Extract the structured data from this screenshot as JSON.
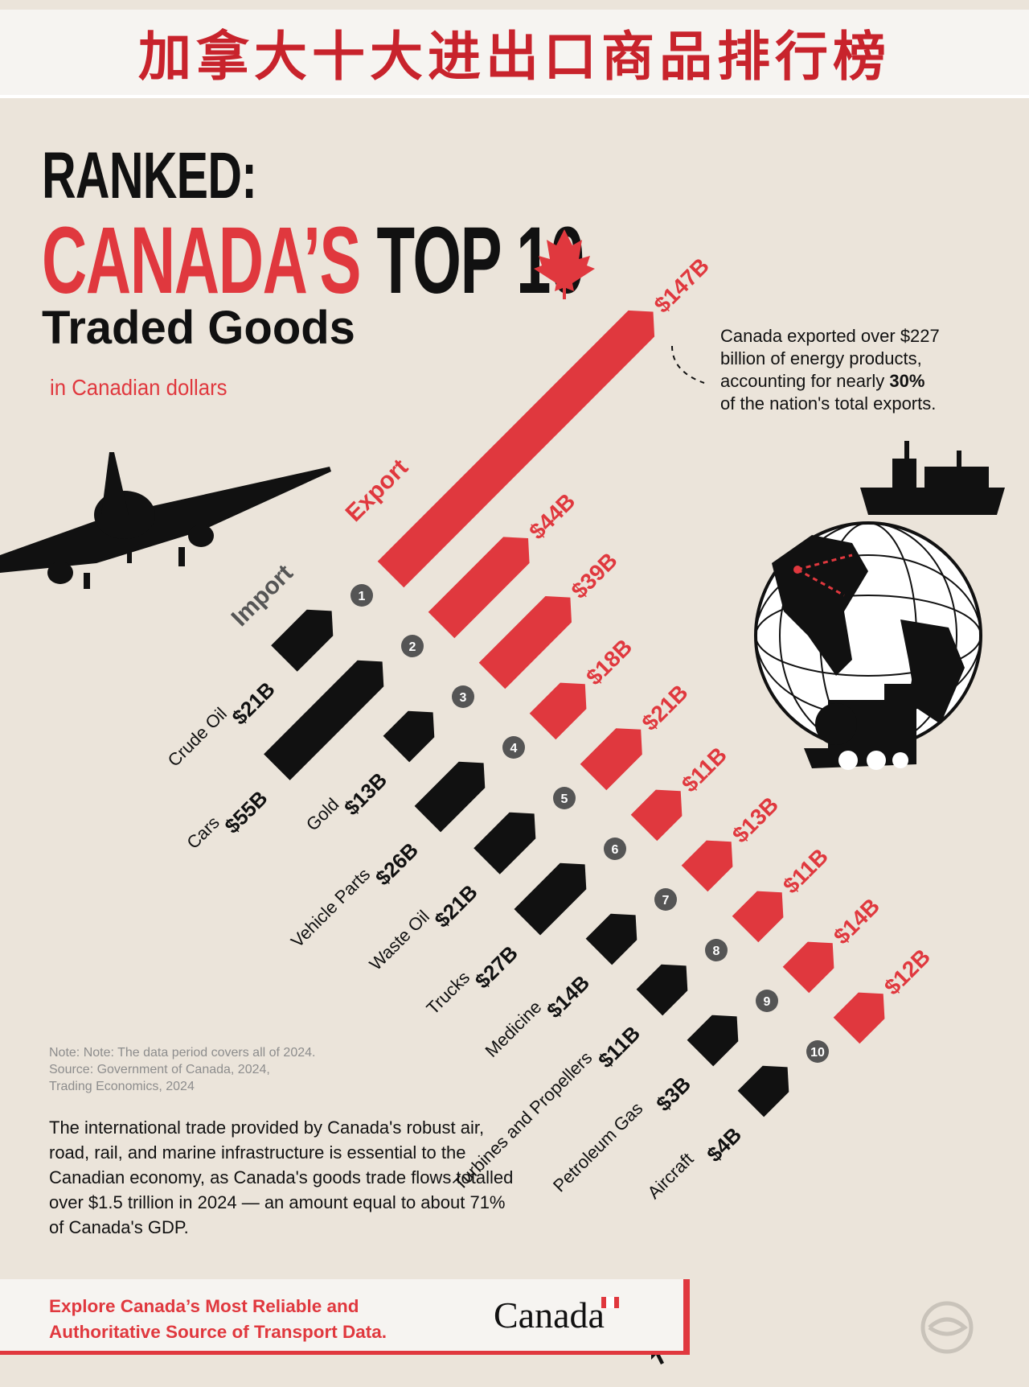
{
  "banner": {
    "title": "加拿大十大进出口商品排行榜"
  },
  "header": {
    "ranked": "RANKED:",
    "canadas": "CANADA’S",
    "top10": "TOP 10",
    "traded_goods": "Traded Goods",
    "subtitle": "in Canadian dollars"
  },
  "energy_note": {
    "line1": "Canada exported over $227",
    "line2": "billion of energy products,",
    "line3a": "accounting for nearly ",
    "line3b": "30%",
    "line4": "of the nation's total exports."
  },
  "note": {
    "line1": "Note: Note: The data period covers all of 2024.",
    "line2": "Source: Government of Canada, 2024,",
    "line3": "Trading Economics, 2024"
  },
  "body_text": "The international trade provided by Canada's robust air, road, rail, and marine infrastructure is essential to the Canadian economy, as Canada's goods trade flows totalled over $1.5 trillion in 2024 — an amount equal to about 71% of Canada's GDP.",
  "cta": {
    "text": "Explore Canada’s Most Reliable and Authoritative Source of Transport Data.",
    "brand": "Canada"
  },
  "colors": {
    "export": "#e0383e",
    "import": "#111111",
    "background": "#ebe4da"
  },
  "icons": [
    "airplane-icon",
    "globe-icon",
    "cargo-ship-icon",
    "train-icon",
    "maple-leaf-icon",
    "oil-barrel-icon",
    "car-icon",
    "gold-bars-icon",
    "piston-gear-icon",
    "waste-barrel-icon",
    "truck-icon",
    "medicine-bottle-icon",
    "wind-turbine-icon",
    "gas-tank-icon",
    "small-plane-icon",
    "cursor-icon",
    "watermark-logo-icon"
  ],
  "chart_data": {
    "type": "bar",
    "orientation": "diagonal",
    "series_labels": {
      "export": "Export",
      "import": "Import"
    },
    "unit": "B",
    "categories": [
      "Crude Oil",
      "Cars",
      "Gold",
      "Vehicle Parts",
      "Waste Oil",
      "Trucks",
      "Medicine",
      "Turbines and Propellers",
      "Petroleum Gas",
      "Aircraft"
    ],
    "ranks": [
      "1",
      "2",
      "3",
      "4",
      "5",
      "6",
      "7",
      "8",
      "9",
      "10"
    ],
    "series": [
      {
        "name": "Export",
        "values": [
          147,
          44,
          39,
          18,
          21,
          11,
          13,
          11,
          14,
          12
        ],
        "labels": [
          "$147B",
          "$44B",
          "$39B",
          "$18B",
          "$21B",
          "$11B",
          "$13B",
          "$11B",
          "$14B",
          "$12B"
        ]
      },
      {
        "name": "Import",
        "values": [
          21,
          55,
          13,
          26,
          21,
          27,
          14,
          11,
          3,
          4
        ],
        "labels": [
          "$21B",
          "$55B",
          "$13B",
          "$26B",
          "$21B",
          "$27B",
          "$14B",
          "$11B",
          "$3B",
          "$4B"
        ]
      }
    ]
  }
}
